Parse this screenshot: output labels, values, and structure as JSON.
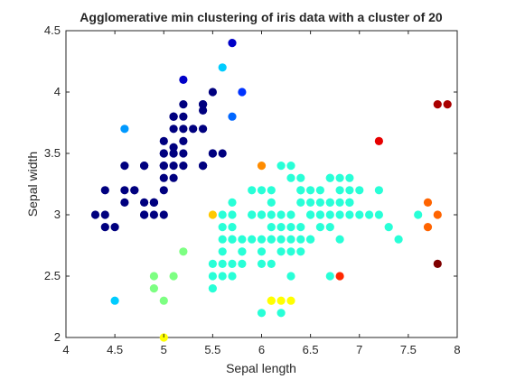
{
  "chart_data": {
    "type": "scatter",
    "title": "Agglomerative min clustering of iris data with a cluster of 20",
    "xlabel": "Sepal length",
    "ylabel": "Sepal width",
    "xlim": [
      4,
      8
    ],
    "ylim": [
      2,
      4.5
    ],
    "xticks": [
      "4",
      "4.5",
      "5",
      "5.5",
      "6",
      "6.5",
      "7",
      "7.5",
      "8"
    ],
    "yticks": [
      "2",
      "2.5",
      "3",
      "3.5",
      "4",
      "4.5"
    ],
    "grid": false,
    "legend": "none",
    "series": [
      {
        "color": "#00007f",
        "points": [
          [
            4.3,
            3.0
          ],
          [
            4.4,
            2.9
          ],
          [
            4.4,
            3.0
          ],
          [
            4.4,
            3.2
          ],
          [
            4.5,
            2.9
          ],
          [
            4.6,
            3.1
          ],
          [
            4.6,
            3.2
          ],
          [
            4.6,
            3.4
          ],
          [
            4.7,
            3.2
          ],
          [
            4.7,
            3.2
          ],
          [
            4.8,
            3.0
          ],
          [
            4.8,
            3.0
          ],
          [
            4.8,
            3.1
          ],
          [
            4.8,
            3.4
          ],
          [
            4.8,
            3.4
          ],
          [
            4.9,
            3.0
          ],
          [
            4.9,
            3.1
          ],
          [
            4.9,
            3.1
          ],
          [
            4.9,
            3.1
          ],
          [
            5.0,
            3.0
          ],
          [
            5.0,
            3.2
          ],
          [
            5.0,
            3.3
          ],
          [
            5.0,
            3.4
          ],
          [
            5.0,
            3.4
          ],
          [
            5.0,
            3.5
          ],
          [
            5.0,
            3.5
          ],
          [
            5.0,
            3.6
          ],
          [
            5.1,
            3.3
          ],
          [
            5.1,
            3.4
          ],
          [
            5.1,
            3.5
          ],
          [
            5.1,
            3.5
          ],
          [
            5.1,
            3.7
          ],
          [
            5.1,
            3.8
          ],
          [
            5.1,
            3.8
          ],
          [
            5.1,
            3.8
          ],
          [
            5.2,
            3.4
          ],
          [
            5.2,
            3.5
          ],
          [
            5.2,
            3.6
          ],
          [
            5.2,
            3.8
          ],
          [
            5.2,
            3.9
          ],
          [
            5.3,
            3.7
          ],
          [
            5.4,
            3.4
          ],
          [
            5.4,
            3.4
          ],
          [
            5.4,
            3.7
          ],
          [
            5.4,
            3.9
          ],
          [
            5.4,
            3.9
          ],
          [
            5.5,
            3.5
          ],
          [
            5.5,
            4.0
          ],
          [
            5.5,
            3.5
          ],
          [
            5.6,
            3.5
          ],
          [
            5.2,
            3.7
          ],
          [
            5.1,
            3.55
          ],
          [
            5.4,
            3.85
          ]
        ]
      },
      {
        "color": "#0000c8",
        "points": [
          [
            5.2,
            4.1
          ],
          [
            5.7,
            4.4
          ]
        ]
      },
      {
        "color": "#0033ff",
        "points": [
          [
            5.8,
            4.0
          ]
        ]
      },
      {
        "color": "#0066ff",
        "points": [
          [
            5.7,
            3.8
          ]
        ]
      },
      {
        "color": "#0099ff",
        "points": [
          [
            4.6,
            3.7
          ]
        ]
      },
      {
        "color": "#00ccff",
        "points": [
          [
            5.6,
            4.2
          ],
          [
            4.5,
            2.3
          ]
        ]
      },
      {
        "color": "#28ffd7",
        "points": [
          [
            5.5,
            2.4
          ],
          [
            5.5,
            2.5
          ],
          [
            5.6,
            2.5
          ],
          [
            5.5,
            2.6
          ],
          [
            5.6,
            2.6
          ],
          [
            5.6,
            2.7
          ],
          [
            5.6,
            2.8
          ],
          [
            5.6,
            2.9
          ],
          [
            5.6,
            3.0
          ],
          [
            5.7,
            2.5
          ],
          [
            5.7,
            2.6
          ],
          [
            5.7,
            2.8
          ],
          [
            5.7,
            2.8
          ],
          [
            5.7,
            2.9
          ],
          [
            5.7,
            3.0
          ],
          [
            5.7,
            3.1
          ],
          [
            5.8,
            2.6
          ],
          [
            5.8,
            2.7
          ],
          [
            5.8,
            2.7
          ],
          [
            5.8,
            2.8
          ],
          [
            5.9,
            2.8
          ],
          [
            5.9,
            3.0
          ],
          [
            5.9,
            3.0
          ],
          [
            5.9,
            3.2
          ],
          [
            6.0,
            2.6
          ],
          [
            6.0,
            2.7
          ],
          [
            6.0,
            2.8
          ],
          [
            6.0,
            3.0
          ],
          [
            6.0,
            3.0
          ],
          [
            6.0,
            3.2
          ],
          [
            6.1,
            2.6
          ],
          [
            6.1,
            2.8
          ],
          [
            6.1,
            2.9
          ],
          [
            6.1,
            3.0
          ],
          [
            6.1,
            3.2
          ],
          [
            6.1,
            2.8
          ],
          [
            6.2,
            2.7
          ],
          [
            6.2,
            2.8
          ],
          [
            6.2,
            2.9
          ],
          [
            6.2,
            3.0
          ],
          [
            6.2,
            3.4
          ],
          [
            6.3,
            2.7
          ],
          [
            6.3,
            2.8
          ],
          [
            6.3,
            2.9
          ],
          [
            6.3,
            3.0
          ],
          [
            6.3,
            3.3
          ],
          [
            6.3,
            3.4
          ],
          [
            6.4,
            2.7
          ],
          [
            6.4,
            2.8
          ],
          [
            6.4,
            2.9
          ],
          [
            6.4,
            3.1
          ],
          [
            6.4,
            3.2
          ],
          [
            6.4,
            3.2
          ],
          [
            6.5,
            2.8
          ],
          [
            6.5,
            3.0
          ],
          [
            6.5,
            3.0
          ],
          [
            6.5,
            3.1
          ],
          [
            6.5,
            3.2
          ],
          [
            6.6,
            2.9
          ],
          [
            6.6,
            3.0
          ],
          [
            6.6,
            3.1
          ],
          [
            6.7,
            2.9
          ],
          [
            6.7,
            3.0
          ],
          [
            6.7,
            3.1
          ],
          [
            6.7,
            3.3
          ],
          [
            6.7,
            3.3
          ],
          [
            6.7,
            3.1
          ],
          [
            6.8,
            3.0
          ],
          [
            6.8,
            3.1
          ],
          [
            6.8,
            3.2
          ],
          [
            6.8,
            3.3
          ],
          [
            6.9,
            3.1
          ],
          [
            6.9,
            3.1
          ],
          [
            6.9,
            3.2
          ],
          [
            6.9,
            3.0
          ],
          [
            7.0,
            3.2
          ],
          [
            7.0,
            3.0
          ],
          [
            7.1,
            3.0
          ],
          [
            7.2,
            3.0
          ],
          [
            7.2,
            3.2
          ],
          [
            7.3,
            2.9
          ],
          [
            7.4,
            2.8
          ],
          [
            7.6,
            3.0
          ],
          [
            6.3,
            2.5
          ],
          [
            6.5,
            2.8
          ],
          [
            6.6,
            3.0
          ],
          [
            6.8,
            2.8
          ],
          [
            6.2,
            2.2
          ],
          [
            6.0,
            2.2
          ],
          [
            6.9,
            3.1
          ],
          [
            6.7,
            2.5
          ],
          [
            6.4,
            3.3
          ],
          [
            6.9,
            3.3
          ],
          [
            6.1,
            3.1
          ],
          [
            6.6,
            3.2
          ]
        ]
      },
      {
        "color": "#7dff82",
        "points": [
          [
            4.9,
            2.5
          ],
          [
            4.9,
            2.4
          ],
          [
            5.0,
            2.3
          ],
          [
            5.1,
            2.5
          ],
          [
            5.2,
            2.7
          ]
        ]
      },
      {
        "color": "#ffff00",
        "points": [
          [
            6.1,
            2.3
          ],
          [
            6.1,
            2.3
          ],
          [
            6.2,
            2.3
          ],
          [
            6.3,
            2.3
          ],
          [
            5.0,
            2.0
          ]
        ]
      },
      {
        "color": "#ffc800",
        "points": [
          [
            5.5,
            3.0
          ]
        ]
      },
      {
        "color": "#ff8c00",
        "points": [
          [
            6.0,
            3.4
          ]
        ]
      },
      {
        "color": "#ff6400",
        "points": [
          [
            7.7,
            3.1
          ],
          [
            7.8,
            3.0
          ],
          [
            7.7,
            2.9
          ]
        ]
      },
      {
        "color": "#ff2800",
        "points": [
          [
            6.8,
            2.5
          ]
        ]
      },
      {
        "color": "#e60000",
        "points": [
          [
            7.2,
            3.6
          ]
        ]
      },
      {
        "color": "#aa0000",
        "points": [
          [
            7.8,
            3.9
          ],
          [
            7.9,
            3.9
          ]
        ]
      },
      {
        "color": "#7f0000",
        "points": [
          [
            7.8,
            2.6
          ]
        ]
      }
    ]
  }
}
